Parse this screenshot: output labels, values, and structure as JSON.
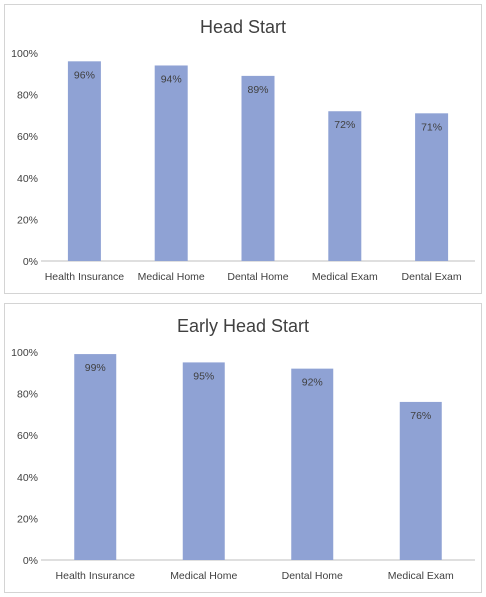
{
  "colors": {
    "bar": "#8fa2d4",
    "axis": "#bfbfbf",
    "text": "#404040"
  },
  "chart_data": [
    {
      "type": "bar",
      "title": "Head Start",
      "categories": [
        "Health Insurance",
        "Medical Home",
        "Dental Home",
        "Medical Exam",
        "Dental Exam"
      ],
      "values": [
        96,
        94,
        89,
        72,
        71
      ],
      "data_labels": [
        "96%",
        "94%",
        "89%",
        "72%",
        "71%"
      ],
      "ylim": [
        0,
        100
      ],
      "yticks": [
        "0%",
        "20%",
        "40%",
        "60%",
        "80%",
        "100%"
      ],
      "xlabel": "",
      "ylabel": "",
      "grid": false,
      "legend": "none"
    },
    {
      "type": "bar",
      "title": "Early Head Start",
      "categories": [
        "Health Insurance",
        "Medical Home",
        "Dental Home",
        "Medical Exam"
      ],
      "values": [
        99,
        95,
        92,
        76
      ],
      "data_labels": [
        "99%",
        "95%",
        "92%",
        "76%"
      ],
      "ylim": [
        0,
        100
      ],
      "yticks": [
        "0%",
        "20%",
        "40%",
        "60%",
        "80%",
        "100%"
      ],
      "xlabel": "",
      "ylabel": "",
      "grid": false,
      "legend": "none"
    }
  ]
}
